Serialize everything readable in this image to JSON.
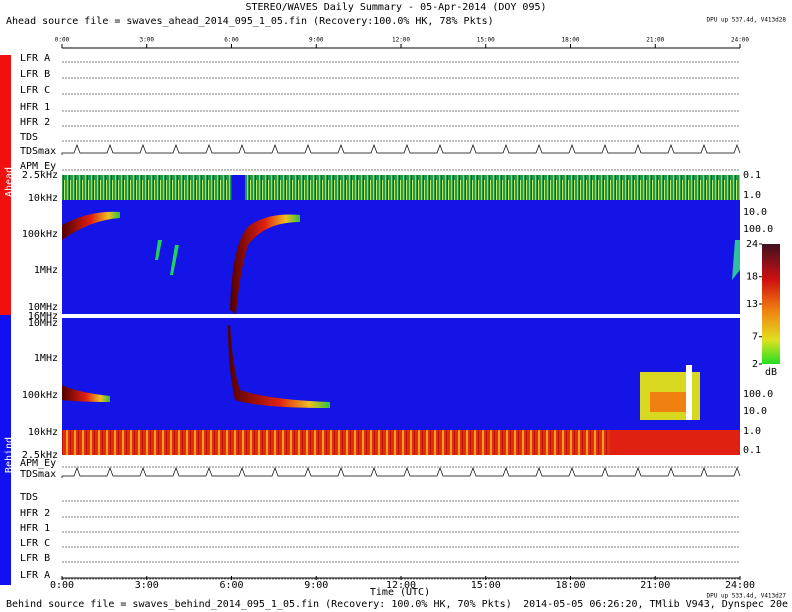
{
  "header": {
    "title": "STEREO/WAVES Daily Summary - 05-Apr-2014 (DOY 095)",
    "ahead_source": "Ahead source file = swaves_ahead_2014_095_1_05.fin (Recovery:100.0% HK, 78% Pkts)",
    "ahead_dpu": "DPU up 537.4d, V413d28"
  },
  "time_axis": {
    "ticks": [
      "0:00",
      "3:00",
      "6:00",
      "9:00",
      "12:00",
      "15:00",
      "18:00",
      "21:00",
      "24:00"
    ],
    "label": "Time (UTC)"
  },
  "ahead": {
    "side_label": "Ahead",
    "panels": [
      "LFR A",
      "LFR B",
      "LFR C",
      "HFR 1",
      "HFR 2",
      "TDS",
      "TDSmax",
      "APM_Ey"
    ],
    "freq_labels": [
      "2.5kHz",
      "10kHz",
      "100kHz",
      "1MHz",
      "10MHz",
      "16MHz"
    ],
    "scale_labels": [
      "0.1",
      "1.0",
      "10.0",
      "100.0"
    ]
  },
  "behind": {
    "side_label": "Behind",
    "panels": [
      "LFR A",
      "LFR B",
      "LFR C",
      "HFR 1",
      "HFR 2",
      "TDS",
      "TDSmax",
      "APM_Ey"
    ],
    "freq_labels": [
      "2.5kHz",
      "10kHz",
      "100kHz",
      "1MHz",
      "10MHz"
    ],
    "scale_labels": [
      "0.1",
      "1.0",
      "10.0",
      "100.0"
    ]
  },
  "colorbar": {
    "ticks": [
      24,
      18,
      13,
      7,
      2
    ],
    "unit": "dB"
  },
  "footer": {
    "behind_source": "Behind source file = swaves_behind_2014_095_1_05.fin (Recovery: 100.0% HK, 70% Pkts)",
    "behind_dpu": "DPU up 533.4d, V413d27",
    "timestamp": "2014-05-05 06:26:20, TMlib V943, Dynspec 20e"
  }
}
